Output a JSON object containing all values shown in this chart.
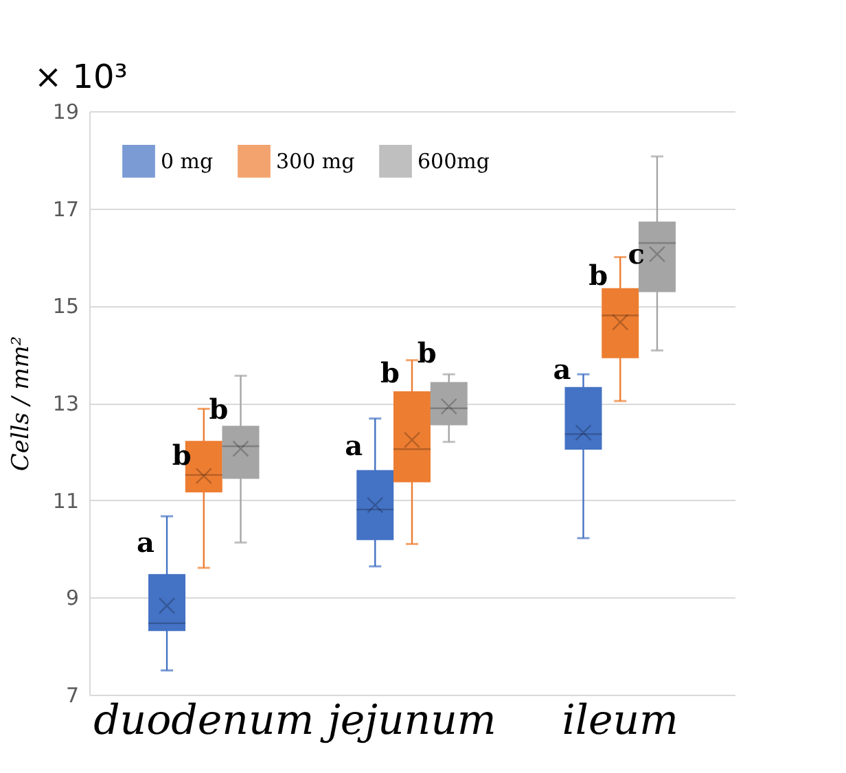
{
  "chart_data": {
    "type": "box",
    "categories": [
      "duodenum",
      "jejunum",
      "ileum"
    ],
    "ylabel": "Cells / mm²",
    "ylim": [
      7,
      19
    ],
    "yticks": [
      7,
      9,
      11,
      13,
      15,
      17,
      19
    ],
    "grid": "y",
    "legend": "top left",
    "series": [
      {
        "name": "0 mg",
        "color": "#4472c4",
        "boxes": [
          {
            "low": 7.5,
            "q1": 8.31,
            "median": 8.47,
            "q3": 9.48,
            "high": 10.67,
            "mean": 8.83
          },
          {
            "low": 9.64,
            "q1": 10.18,
            "median": 10.81,
            "q3": 11.62,
            "high": 12.68,
            "mean": 10.9
          },
          {
            "low": 10.22,
            "q1": 12.04,
            "median": 12.36,
            "q3": 13.33,
            "high": 13.59,
            "mean": 12.39
          }
        ]
      },
      {
        "name": "300 mg",
        "color": "#ed7d31",
        "boxes": [
          {
            "low": 9.61,
            "q1": 11.16,
            "median": 11.52,
            "q3": 12.22,
            "high": 12.88,
            "mean": 11.5
          },
          {
            "low": 10.1,
            "q1": 11.37,
            "median": 12.05,
            "q3": 13.24,
            "high": 13.88,
            "mean": 12.24
          },
          {
            "low": 13.04,
            "q1": 13.92,
            "median": 14.8,
            "q3": 15.36,
            "high": 16.0,
            "mean": 14.66
          }
        ]
      },
      {
        "name": "600mg",
        "color": "#a5a5a5",
        "boxes": [
          {
            "low": 10.13,
            "q1": 11.44,
            "median": 12.11,
            "q3": 12.53,
            "high": 13.56,
            "mean": 12.06
          },
          {
            "low": 12.2,
            "q1": 12.54,
            "median": 12.89,
            "q3": 13.43,
            "high": 13.59,
            "mean": 12.93
          },
          {
            "low": 14.08,
            "q1": 15.28,
            "median": 16.29,
            "q3": 16.73,
            "high": 18.07,
            "mean": 16.06
          }
        ]
      }
    ],
    "annotations": [
      "× 10³",
      {
        "text": "a",
        "x": "duodenum",
        "y": 10.1
      },
      {
        "text": "b",
        "x": "duodenum",
        "y": 11.9
      },
      {
        "text": "b",
        "x": "duodenum",
        "y": 12.85
      },
      {
        "text": "a",
        "x": "jejunum",
        "y": 12.1
      },
      {
        "text": "b",
        "x": "jejunum",
        "y": 13.6
      },
      {
        "text": "b",
        "x": "jejunum",
        "y": 14.0
      },
      {
        "text": "a",
        "x": "ileum",
        "y": 13.66
      },
      {
        "text": "b",
        "x": "ileum",
        "y": 15.6
      },
      {
        "text": "c",
        "x": "ileum",
        "y": 16.03
      }
    ]
  }
}
